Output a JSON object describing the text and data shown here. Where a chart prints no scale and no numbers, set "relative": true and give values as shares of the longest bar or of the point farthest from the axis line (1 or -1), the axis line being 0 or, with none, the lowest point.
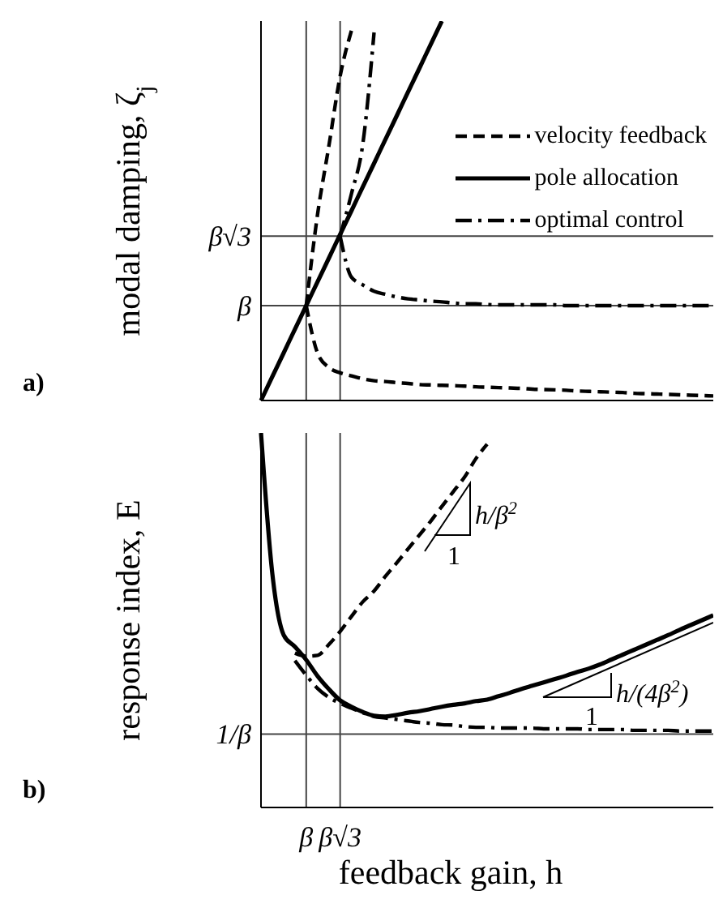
{
  "chart_data": [
    {
      "type": "line",
      "ylabel": "modal damping, ζ$_{j}$",
      "annotations": [
        "a)"
      ],
      "relative": true,
      "tick_labels": false,
      "legend": "top right",
      "categories": [
        null,
        null,
        null,
        null,
        "β",
        null,
        null,
        "β√3",
        null,
        null,
        null,
        null,
        null,
        null,
        null,
        null,
        null,
        null,
        null,
        null,
        null,
        null,
        null,
        null,
        null,
        null,
        null,
        null,
        null,
        null,
        null,
        null,
        null,
        null,
        null,
        null,
        null,
        null,
        null,
        null,
        null
      ],
      "ref_lines": [
        {
          "axis": "y",
          "value": 0.25,
          "label": "β"
        },
        {
          "axis": "y",
          "value": 0.433,
          "label": "β√3"
        },
        {
          "axis": "x",
          "value": "β"
        },
        {
          "axis": "x",
          "value": "β√3"
        }
      ],
      "series": [
        {
          "name": "velocity feedback",
          "color": "#000000",
          "line_style": "dashed",
          "values": [
            null,
            null,
            null,
            null,
            0.25,
            0.125,
            0.087,
            0.073,
            0.065,
            0.057,
            0.052,
            0.05,
            0.047,
            0.045,
            0.042,
            0.041,
            0.04,
            0.039,
            0.038,
            0.036,
            0.035,
            0.034,
            0.033,
            0.032,
            0.03,
            0.029,
            0.028,
            0.027,
            0.025,
            0.024,
            0.023,
            0.022,
            0.021,
            0.019,
            0.018,
            0.017,
            0.016,
            0.015,
            0.014,
            0.013,
            0.012
          ]
        },
        {
          "name": "pole allocation",
          "color": "#000000",
          "line_style": "solid",
          "values": [
            0,
            0.063,
            0.125,
            0.188,
            0.25,
            0.313,
            0.375,
            0.438,
            0.5,
            0.563,
            0.625,
            0.688,
            0.75,
            0.813,
            0.875,
            0.938,
            1,
            null,
            null,
            null,
            null,
            null,
            null,
            null,
            null,
            null,
            null,
            null,
            null,
            null,
            null,
            null,
            null,
            null,
            null,
            null,
            null,
            null,
            null,
            null,
            null
          ]
        },
        {
          "name": "optimal control",
          "color": "#000000",
          "line_style": "dashdot",
          "values": [
            null,
            null,
            null,
            null,
            null,
            null,
            null,
            0.433,
            0.325,
            0.305,
            0.288,
            0.28,
            0.273,
            0.268,
            0.265,
            0.262,
            0.26,
            0.257,
            0.255,
            0.255,
            0.253,
            0.252,
            0.252,
            0.252,
            0.252,
            0.252,
            0.252,
            0.25,
            0.25,
            0.25,
            0.25,
            0.25,
            0.25,
            0.25,
            0.25,
            0.25,
            0.25,
            0.25,
            0.25,
            0.25,
            0.25
          ]
        },
        {
          "color": "#000000",
          "line_style": "dashed",
          "values": [
            null,
            null,
            null,
            null,
            0.25,
            0.49,
            0.67,
            0.855,
            0.975,
            null,
            null,
            null,
            null,
            null,
            null,
            null,
            null,
            null,
            null,
            null,
            null,
            null,
            null,
            null,
            null,
            null,
            null,
            null,
            null,
            null,
            null,
            null,
            null,
            null,
            null,
            null,
            null,
            null,
            null,
            null,
            null
          ]
        },
        {
          "color": "#000000",
          "line_style": "dashdot",
          "values": [
            null,
            null,
            null,
            null,
            null,
            null,
            null,
            0.433,
            0.545,
            0.675,
            0.97,
            null,
            null,
            null,
            null,
            null,
            null,
            null,
            null,
            null,
            null,
            null,
            null,
            null,
            null,
            null,
            null,
            null,
            null,
            null,
            null,
            null,
            null,
            null,
            null,
            null,
            null,
            null,
            null,
            null,
            null
          ]
        }
      ]
    },
    {
      "type": "line",
      "xlabel": "feedback gain, h",
      "ylabel": "response index, E",
      "relative": true,
      "tick_labels": "x",
      "annotations": [
        "b)",
        "h/β$^{2}$",
        "1",
        "h/(4β$^{2}$)",
        "1"
      ],
      "categories": [
        null,
        null,
        null,
        null,
        "β",
        null,
        null,
        "β√3",
        null,
        null,
        null,
        null,
        null,
        null,
        null,
        null,
        null,
        null,
        null,
        null,
        null,
        null,
        null,
        null,
        null,
        null,
        null,
        null,
        null,
        null,
        null,
        null,
        null,
        null,
        null,
        null,
        null,
        null,
        null,
        null,
        null
      ],
      "ref_lines": [
        {
          "axis": "y",
          "value": 0.196,
          "label": "1/β"
        },
        {
          "axis": "x",
          "value": "β"
        },
        {
          "axis": "x",
          "value": "β√3"
        }
      ],
      "series": [
        {
          "color": "#000000",
          "line_style": "solid",
          "values": [
            1,
            0.625,
            0.461,
            0.429,
            0.394,
            0.351,
            0.316,
            0.286,
            0.269,
            0.255,
            0.245,
            0.243,
            0.247,
            0.253,
            0.257,
            0.263,
            0.269,
            0.274,
            0.278,
            0.284,
            0.288,
            0.297,
            0.306,
            0.316,
            0.325,
            0.334,
            0.343,
            0.352,
            0.362,
            0.371,
            0.382,
            0.395,
            0.408,
            0.421,
            0.434,
            0.447,
            0.46,
            0.474,
            0.487,
            0.5,
            0.513
          ]
        },
        {
          "color": "#000000",
          "line_style": "dashed",
          "values": [
            null,
            null,
            null,
            0.412,
            0.404,
            0.406,
            0.435,
            0.47,
            0.51,
            0.549,
            0.578,
            0.617,
            0.653,
            0.69,
            0.727,
            0.764,
            0.804,
            0.843,
            0.882,
            0.931,
            0.97,
            null,
            null,
            null,
            null,
            null,
            null,
            null,
            null,
            null,
            null,
            null,
            null,
            null,
            null,
            null,
            null,
            null,
            null,
            null,
            null
          ]
        },
        {
          "color": "#000000",
          "line_style": "dashdot",
          "values": [
            null,
            null,
            null,
            0.392,
            0.353,
            0.318,
            0.294,
            0.278,
            0.265,
            0.253,
            0.243,
            0.239,
            0.235,
            0.231,
            0.227,
            0.225,
            0.221,
            0.22,
            0.216,
            0.214,
            0.214,
            0.212,
            0.212,
            0.212,
            0.212,
            0.21,
            0.21,
            0.21,
            0.21,
            0.208,
            0.208,
            0.208,
            0.208,
            0.206,
            0.206,
            0.206,
            0.206,
            0.204,
            0.204,
            0.204,
            0.204
          ]
        }
      ]
    }
  ]
}
